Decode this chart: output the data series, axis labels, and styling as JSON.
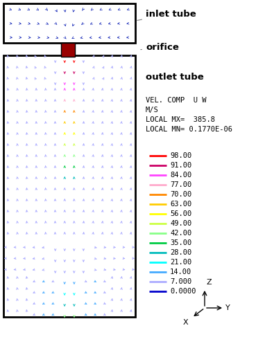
{
  "bg_color": "#ffffff",
  "fig_width": 3.82,
  "fig_height": 4.87,
  "dpi": 100,
  "legend_entries": [
    {
      "label": "98.00",
      "color": "#ff0000"
    },
    {
      "label": "91.00",
      "color": "#cc0066"
    },
    {
      "label": "84.00",
      "color": "#ff44ff"
    },
    {
      "label": "77.00",
      "color": "#ffaacc"
    },
    {
      "label": "70.00",
      "color": "#ff8800"
    },
    {
      "label": "63.00",
      "color": "#ffcc00"
    },
    {
      "label": "56.00",
      "color": "#ffff00"
    },
    {
      "label": "49.00",
      "color": "#ccff44"
    },
    {
      "label": "42.00",
      "color": "#88ff88"
    },
    {
      "label": "35.00",
      "color": "#00cc44"
    },
    {
      "label": "28.00",
      "color": "#00bbbb"
    },
    {
      "label": "21.00",
      "color": "#00ffff"
    },
    {
      "label": "14.00",
      "color": "#44aaff"
    },
    {
      "label": "7.000",
      "color": "#aaaaff"
    },
    {
      "label": "0.0000",
      "color": "#0000cc"
    }
  ],
  "vel_text": "VEL. COMP  U W\nM/S\nLOCAL MX=  385.8\nLOCAL MN= 0.1770E-06",
  "inlet_arrow_color": "#2233bb",
  "outlet_arrow_color_default": "#1122bb",
  "orifice_color": "#aa0000",
  "border_color": "#000000"
}
